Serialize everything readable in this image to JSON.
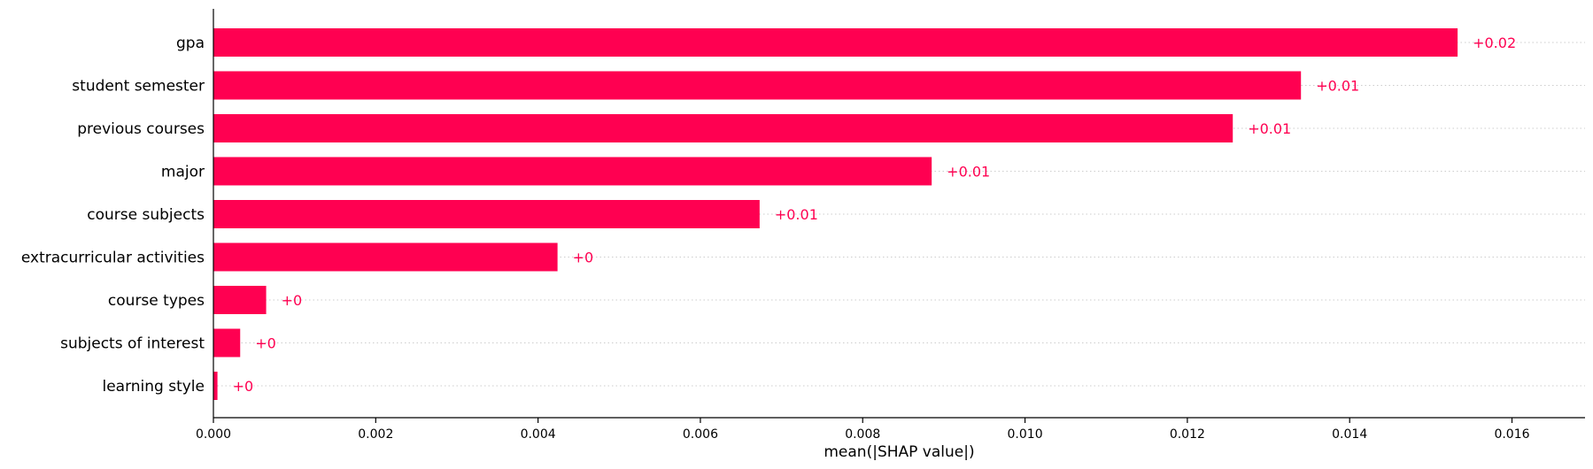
{
  "chart_data": {
    "type": "bar",
    "orientation": "horizontal",
    "categories": [
      "gpa",
      "student semester",
      "previous courses",
      "major",
      "course subjects",
      "extracurricular activities",
      "course types",
      "subjects of interest",
      "learning style"
    ],
    "values": [
      0.01533,
      0.0134,
      0.01256,
      0.00885,
      0.00673,
      0.00424,
      0.00065,
      0.00033,
      5e-05
    ],
    "data_labels": [
      "+0.02",
      "+0.01",
      "+0.01",
      "+0.01",
      "+0.01",
      "+0",
      "+0",
      "+0",
      "+0"
    ],
    "title": "",
    "xlabel": "mean(|SHAP value|)",
    "ylabel": "",
    "xlim": [
      0,
      0.0169
    ],
    "xticks": [
      0.0,
      0.002,
      0.004,
      0.006,
      0.008,
      0.01,
      0.012,
      0.014,
      0.016
    ],
    "xtick_labels": [
      "0.000",
      "0.002",
      "0.004",
      "0.006",
      "0.008",
      "0.010",
      "0.012",
      "0.014",
      "0.016"
    ],
    "grid": "horizontal dotted",
    "legend": "none",
    "colors": {
      "bar": "#ff0051",
      "label": "#ff0051"
    }
  }
}
